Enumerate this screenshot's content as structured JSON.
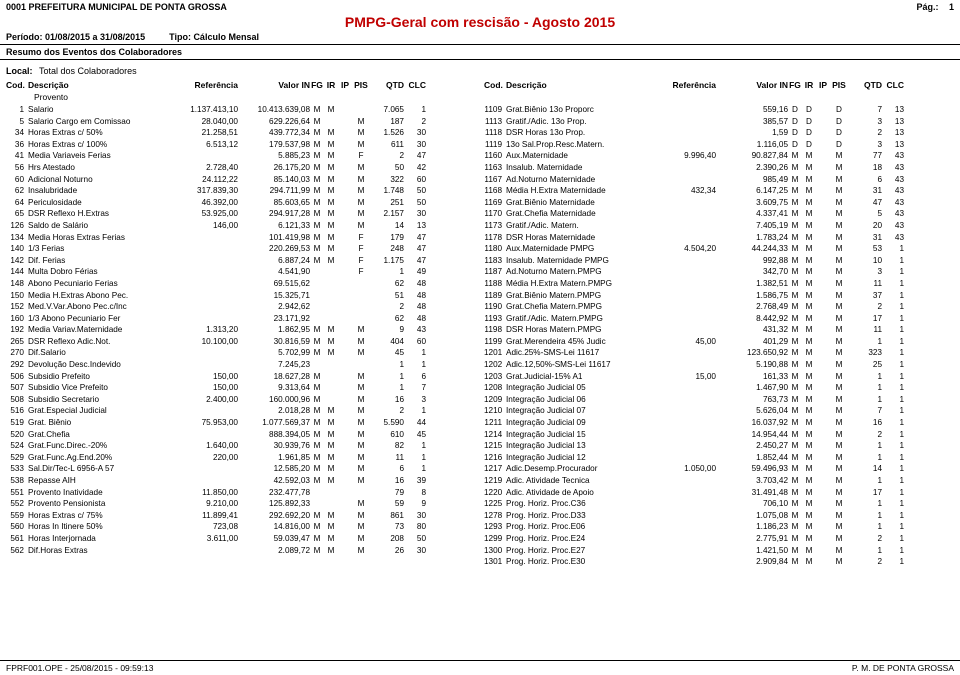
{
  "header": {
    "org": "0001  PREFEITURA MUNICIPAL DE PONTA GROSSA",
    "page_label": "Pág.:",
    "page_num": "1",
    "title": "PMPG-Geral com rescisão - Agosto 2015",
    "periodo_label": "Período: 01/08/2015 a 31/08/2015",
    "tipo_label": "Tipo: Cálculo Mensal",
    "section": "Resumo dos Eventos dos Colaboradores",
    "local_label": "Local:",
    "local_value": "Total dos Colaboradores"
  },
  "thead": {
    "cod": "Cod.",
    "desc": "Descrição",
    "ref": "Referência",
    "val": "Valor IN",
    "fg": "FG",
    "ir": "IR",
    "ip": "IP",
    "pis": "PIS",
    "qtd": "QTD",
    "clc": "CLC",
    "sub": "Provento"
  },
  "left": [
    {
      "cod": "1",
      "desc": "Salario",
      "ref": "1.137.413,10",
      "val": "10.413.639,08",
      "fg": "M",
      "ir": "M",
      "ip": "",
      "pis": "",
      "qtd": "7.065",
      "clc": "1"
    },
    {
      "cod": "5",
      "desc": "Salario Cargo em Comissao",
      "ref": "28.040,00",
      "val": "629.226,64",
      "fg": "M",
      "ir": "",
      "ip": "",
      "pis": "M",
      "qtd": "187",
      "clc": "2"
    },
    {
      "cod": "34",
      "desc": "Horas Extras c/ 50%",
      "ref": "21.258,51",
      "val": "439.772,34",
      "fg": "M",
      "ir": "M",
      "ip": "",
      "pis": "M",
      "qtd": "1.526",
      "clc": "30"
    },
    {
      "cod": "36",
      "desc": "Horas Extras c/ 100%",
      "ref": "6.513,12",
      "val": "179.537,98",
      "fg": "M",
      "ir": "M",
      "ip": "",
      "pis": "M",
      "qtd": "611",
      "clc": "30"
    },
    {
      "cod": "41",
      "desc": "Media Variaveis Ferias",
      "ref": "",
      "val": "5.885,23",
      "fg": "M",
      "ir": "M",
      "ip": "",
      "pis": "F",
      "qtd": "2",
      "clc": "47"
    },
    {
      "cod": "56",
      "desc": "Hrs Atestado",
      "ref": "2.728,40",
      "val": "26.175,20",
      "fg": "M",
      "ir": "M",
      "ip": "",
      "pis": "M",
      "qtd": "50",
      "clc": "42"
    },
    {
      "cod": "60",
      "desc": "Adicional Noturno",
      "ref": "24.112,22",
      "val": "85.140,03",
      "fg": "M",
      "ir": "M",
      "ip": "",
      "pis": "M",
      "qtd": "322",
      "clc": "60"
    },
    {
      "cod": "62",
      "desc": "Insalubridade",
      "ref": "317.839,30",
      "val": "294.711,99",
      "fg": "M",
      "ir": "M",
      "ip": "",
      "pis": "M",
      "qtd": "1.748",
      "clc": "50"
    },
    {
      "cod": "64",
      "desc": "Periculosidade",
      "ref": "46.392,00",
      "val": "85.603,65",
      "fg": "M",
      "ir": "M",
      "ip": "",
      "pis": "M",
      "qtd": "251",
      "clc": "50"
    },
    {
      "cod": "65",
      "desc": "DSR Reflexo H.Extras",
      "ref": "53.925,00",
      "val": "294.917,28",
      "fg": "M",
      "ir": "M",
      "ip": "",
      "pis": "M",
      "qtd": "2.157",
      "clc": "30"
    },
    {
      "cod": "126",
      "desc": "Saldo de Salário",
      "ref": "146,00",
      "val": "6.121,33",
      "fg": "M",
      "ir": "M",
      "ip": "",
      "pis": "M",
      "qtd": "14",
      "clc": "13"
    },
    {
      "cod": "134",
      "desc": "Media Horas Extras Ferias",
      "ref": "",
      "val": "101.419,98",
      "fg": "M",
      "ir": "M",
      "ip": "",
      "pis": "F",
      "qtd": "179",
      "clc": "47"
    },
    {
      "cod": "140",
      "desc": "1/3 Ferias",
      "ref": "",
      "val": "220.269,53",
      "fg": "M",
      "ir": "M",
      "ip": "",
      "pis": "F",
      "qtd": "248",
      "clc": "47"
    },
    {
      "cod": "142",
      "desc": "Dif. Ferias",
      "ref": "",
      "val": "6.887,24",
      "fg": "M",
      "ir": "M",
      "ip": "",
      "pis": "F",
      "qtd": "1.175",
      "clc": "47"
    },
    {
      "cod": "144",
      "desc": "Multa Dobro Férias",
      "ref": "",
      "val": "4.541,90",
      "fg": "",
      "ir": "",
      "ip": "",
      "pis": "F",
      "qtd": "1",
      "clc": "49"
    },
    {
      "cod": "148",
      "desc": "Abono Pecuniario Ferias",
      "ref": "",
      "val": "69.515,62",
      "fg": "",
      "ir": "",
      "ip": "",
      "pis": "",
      "qtd": "62",
      "clc": "48"
    },
    {
      "cod": "150",
      "desc": "Media H.Extras Abono Pec.",
      "ref": "",
      "val": "15.325,71",
      "fg": "",
      "ir": "",
      "ip": "",
      "pis": "",
      "qtd": "51",
      "clc": "48"
    },
    {
      "cod": "152",
      "desc": "Med.V.Var.Abono Pec.c/Inc",
      "ref": "",
      "val": "2.942,62",
      "fg": "",
      "ir": "",
      "ip": "",
      "pis": "",
      "qtd": "2",
      "clc": "48"
    },
    {
      "cod": "160",
      "desc": "1/3 Abono Pecuniario Fer",
      "ref": "",
      "val": "23.171,92",
      "fg": "",
      "ir": "",
      "ip": "",
      "pis": "",
      "qtd": "62",
      "clc": "48"
    },
    {
      "cod": "192",
      "desc": "Media Variav.Maternidade",
      "ref": "1.313,20",
      "val": "1.862,95",
      "fg": "M",
      "ir": "M",
      "ip": "",
      "pis": "M",
      "qtd": "9",
      "clc": "43"
    },
    {
      "cod": "265",
      "desc": "DSR Reflexo Adic.Not.",
      "ref": "10.100,00",
      "val": "30.816,59",
      "fg": "M",
      "ir": "M",
      "ip": "",
      "pis": "M",
      "qtd": "404",
      "clc": "60"
    },
    {
      "cod": "270",
      "desc": "Dif.Salario",
      "ref": "",
      "val": "5.702,99",
      "fg": "M",
      "ir": "M",
      "ip": "",
      "pis": "M",
      "qtd": "45",
      "clc": "1"
    },
    {
      "cod": "292",
      "desc": "Devolução Desc.Indevido",
      "ref": "",
      "val": "7.245,23",
      "fg": "",
      "ir": "",
      "ip": "",
      "pis": "",
      "qtd": "1",
      "clc": "1"
    },
    {
      "cod": "506",
      "desc": "Subsidio Prefeito",
      "ref": "150,00",
      "val": "18.627,28",
      "fg": "M",
      "ir": "",
      "ip": "",
      "pis": "M",
      "qtd": "1",
      "clc": "6"
    },
    {
      "cod": "507",
      "desc": "Subsidio Vice Prefeito",
      "ref": "150,00",
      "val": "9.313,64",
      "fg": "M",
      "ir": "",
      "ip": "",
      "pis": "M",
      "qtd": "1",
      "clc": "7"
    },
    {
      "cod": "508",
      "desc": "Subsidio Secretario",
      "ref": "2.400,00",
      "val": "160.000,96",
      "fg": "M",
      "ir": "",
      "ip": "",
      "pis": "M",
      "qtd": "16",
      "clc": "3"
    },
    {
      "cod": "516",
      "desc": "Grat.Especial Judicial",
      "ref": "",
      "val": "2.018,28",
      "fg": "M",
      "ir": "M",
      "ip": "",
      "pis": "M",
      "qtd": "2",
      "clc": "1"
    },
    {
      "cod": "519",
      "desc": "Grat. Biênio",
      "ref": "75.953,00",
      "val": "1.077.569,37",
      "fg": "M",
      "ir": "M",
      "ip": "",
      "pis": "M",
      "qtd": "5.590",
      "clc": "44"
    },
    {
      "cod": "520",
      "desc": "Grat.Chefia",
      "ref": "",
      "val": "888.394,05",
      "fg": "M",
      "ir": "M",
      "ip": "",
      "pis": "M",
      "qtd": "610",
      "clc": "45"
    },
    {
      "cod": "524",
      "desc": "Grat.Func.Direc.-20%",
      "ref": "1.640,00",
      "val": "30.939,76",
      "fg": "M",
      "ir": "M",
      "ip": "",
      "pis": "M",
      "qtd": "82",
      "clc": "1"
    },
    {
      "cod": "529",
      "desc": "Grat.Func.Ag.End.20%",
      "ref": "220,00",
      "val": "1.961,85",
      "fg": "M",
      "ir": "M",
      "ip": "",
      "pis": "M",
      "qtd": "11",
      "clc": "1"
    },
    {
      "cod": "533",
      "desc": "Sal.Dir/Tec-L 6956-A 57",
      "ref": "",
      "val": "12.585,20",
      "fg": "M",
      "ir": "M",
      "ip": "",
      "pis": "M",
      "qtd": "6",
      "clc": "1"
    },
    {
      "cod": "538",
      "desc": "Repasse AIH",
      "ref": "",
      "val": "42.592,03",
      "fg": "M",
      "ir": "M",
      "ip": "",
      "pis": "M",
      "qtd": "16",
      "clc": "39"
    },
    {
      "cod": "551",
      "desc": "Provento Inatividade",
      "ref": "11.850,00",
      "val": "232.477,78",
      "fg": "",
      "ir": "",
      "ip": "",
      "pis": "",
      "qtd": "79",
      "clc": "8"
    },
    {
      "cod": "552",
      "desc": "Provento Pensionista",
      "ref": "9.210,00",
      "val": "125.892,33",
      "fg": "",
      "ir": "",
      "ip": "",
      "pis": "M",
      "qtd": "59",
      "clc": "9"
    },
    {
      "cod": "559",
      "desc": "Horas Extras c/ 75%",
      "ref": "11.899,41",
      "val": "292.692,20",
      "fg": "M",
      "ir": "M",
      "ip": "",
      "pis": "M",
      "qtd": "861",
      "clc": "30"
    },
    {
      "cod": "560",
      "desc": "Horas In Itinere 50%",
      "ref": "723,08",
      "val": "14.816,00",
      "fg": "M",
      "ir": "M",
      "ip": "",
      "pis": "M",
      "qtd": "73",
      "clc": "80"
    },
    {
      "cod": "561",
      "desc": "Horas Interjornada",
      "ref": "3.611,00",
      "val": "59.039,47",
      "fg": "M",
      "ir": "M",
      "ip": "",
      "pis": "M",
      "qtd": "208",
      "clc": "50"
    },
    {
      "cod": "562",
      "desc": "Dif.Horas Extras",
      "ref": "",
      "val": "2.089,72",
      "fg": "M",
      "ir": "M",
      "ip": "",
      "pis": "M",
      "qtd": "26",
      "clc": "30"
    }
  ],
  "right": [
    {
      "cod": "1109",
      "desc": "Grat.Biênio 13o Proporc",
      "ref": "",
      "val": "559,16",
      "fg": "D",
      "ir": "D",
      "ip": "",
      "pis": "D",
      "qtd": "7",
      "clc": "13"
    },
    {
      "cod": "1113",
      "desc": "Gratif./Adic. 13o Prop.",
      "ref": "",
      "val": "385,57",
      "fg": "D",
      "ir": "D",
      "ip": "",
      "pis": "D",
      "qtd": "3",
      "clc": "13"
    },
    {
      "cod": "1118",
      "desc": "DSR Horas 13o Prop.",
      "ref": "",
      "val": "1,59",
      "fg": "D",
      "ir": "D",
      "ip": "",
      "pis": "D",
      "qtd": "2",
      "clc": "13"
    },
    {
      "cod": "1119",
      "desc": "13o Sal.Prop.Resc.Matern.",
      "ref": "",
      "val": "1.116,05",
      "fg": "D",
      "ir": "D",
      "ip": "",
      "pis": "D",
      "qtd": "3",
      "clc": "13"
    },
    {
      "cod": "1160",
      "desc": "Aux.Maternidade",
      "ref": "9.996,40",
      "val": "90.827,84",
      "fg": "M",
      "ir": "M",
      "ip": "",
      "pis": "M",
      "qtd": "77",
      "clc": "43"
    },
    {
      "cod": "1163",
      "desc": "Insalub. Maternidade",
      "ref": "",
      "val": "2.390,26",
      "fg": "M",
      "ir": "M",
      "ip": "",
      "pis": "M",
      "qtd": "18",
      "clc": "43"
    },
    {
      "cod": "1167",
      "desc": "Ad.Noturno Maternidade",
      "ref": "",
      "val": "985,49",
      "fg": "M",
      "ir": "M",
      "ip": "",
      "pis": "M",
      "qtd": "6",
      "clc": "43"
    },
    {
      "cod": "1168",
      "desc": "Média H.Extra Maternidade",
      "ref": "432,34",
      "val": "6.147,25",
      "fg": "M",
      "ir": "M",
      "ip": "",
      "pis": "M",
      "qtd": "31",
      "clc": "43"
    },
    {
      "cod": "1169",
      "desc": "Grat.Biênio Maternidade",
      "ref": "",
      "val": "3.609,75",
      "fg": "M",
      "ir": "M",
      "ip": "",
      "pis": "M",
      "qtd": "47",
      "clc": "43"
    },
    {
      "cod": "1170",
      "desc": "Grat.Chefia Maternidade",
      "ref": "",
      "val": "4.337,41",
      "fg": "M",
      "ir": "M",
      "ip": "",
      "pis": "M",
      "qtd": "5",
      "clc": "43"
    },
    {
      "cod": "1173",
      "desc": "Gratif./Adic. Matern.",
      "ref": "",
      "val": "7.405,19",
      "fg": "M",
      "ir": "M",
      "ip": "",
      "pis": "M",
      "qtd": "20",
      "clc": "43"
    },
    {
      "cod": "1178",
      "desc": "DSR Horas Maternidade",
      "ref": "",
      "val": "1.783,24",
      "fg": "M",
      "ir": "M",
      "ip": "",
      "pis": "M",
      "qtd": "31",
      "clc": "43"
    },
    {
      "cod": "1180",
      "desc": "Aux.Maternidade PMPG",
      "ref": "4.504,20",
      "val": "44.244,33",
      "fg": "M",
      "ir": "M",
      "ip": "",
      "pis": "M",
      "qtd": "53",
      "clc": "1"
    },
    {
      "cod": "1183",
      "desc": "Insalub. Maternidade PMPG",
      "ref": "",
      "val": "992,88",
      "fg": "M",
      "ir": "M",
      "ip": "",
      "pis": "M",
      "qtd": "10",
      "clc": "1"
    },
    {
      "cod": "1187",
      "desc": "Ad.Noturno Matern.PMPG",
      "ref": "",
      "val": "342,70",
      "fg": "M",
      "ir": "M",
      "ip": "",
      "pis": "M",
      "qtd": "3",
      "clc": "1"
    },
    {
      "cod": "1188",
      "desc": "Média H.Extra Matern.PMPG",
      "ref": "",
      "val": "1.382,51",
      "fg": "M",
      "ir": "M",
      "ip": "",
      "pis": "M",
      "qtd": "11",
      "clc": "1"
    },
    {
      "cod": "1189",
      "desc": "Grat.Biênio Matern.PMPG",
      "ref": "",
      "val": "1.586,75",
      "fg": "M",
      "ir": "M",
      "ip": "",
      "pis": "M",
      "qtd": "37",
      "clc": "1"
    },
    {
      "cod": "1190",
      "desc": "Grat.Chefia Matern.PMPG",
      "ref": "",
      "val": "2.768,49",
      "fg": "M",
      "ir": "M",
      "ip": "",
      "pis": "M",
      "qtd": "2",
      "clc": "1"
    },
    {
      "cod": "1193",
      "desc": "Gratif./Adic. Matern.PMPG",
      "ref": "",
      "val": "8.442,92",
      "fg": "M",
      "ir": "M",
      "ip": "",
      "pis": "M",
      "qtd": "17",
      "clc": "1"
    },
    {
      "cod": "1198",
      "desc": "DSR Horas Matern.PMPG",
      "ref": "",
      "val": "431,32",
      "fg": "M",
      "ir": "M",
      "ip": "",
      "pis": "M",
      "qtd": "11",
      "clc": "1"
    },
    {
      "cod": "1199",
      "desc": "Grat.Merendeira 45% Judic",
      "ref": "45,00",
      "val": "401,29",
      "fg": "M",
      "ir": "M",
      "ip": "",
      "pis": "M",
      "qtd": "1",
      "clc": "1"
    },
    {
      "cod": "1201",
      "desc": "Adic.25%-SMS-Lei 11617",
      "ref": "",
      "val": "123.650,92",
      "fg": "M",
      "ir": "M",
      "ip": "",
      "pis": "M",
      "qtd": "323",
      "clc": "1"
    },
    {
      "cod": "1202",
      "desc": "Adic.12,50%-SMS-Lei 11617",
      "ref": "",
      "val": "5.190,88",
      "fg": "M",
      "ir": "M",
      "ip": "",
      "pis": "M",
      "qtd": "25",
      "clc": "1"
    },
    {
      "cod": "1203",
      "desc": "Grat.Judicial-15% A1",
      "ref": "15,00",
      "val": "161,33",
      "fg": "M",
      "ir": "M",
      "ip": "",
      "pis": "M",
      "qtd": "1",
      "clc": "1"
    },
    {
      "cod": "1208",
      "desc": "Integração Judicial 05",
      "ref": "",
      "val": "1.467,90",
      "fg": "M",
      "ir": "M",
      "ip": "",
      "pis": "M",
      "qtd": "1",
      "clc": "1"
    },
    {
      "cod": "1209",
      "desc": "Integração Judicial 06",
      "ref": "",
      "val": "763,73",
      "fg": "M",
      "ir": "M",
      "ip": "",
      "pis": "M",
      "qtd": "1",
      "clc": "1"
    },
    {
      "cod": "1210",
      "desc": "Integração Judicial 07",
      "ref": "",
      "val": "5.626,04",
      "fg": "M",
      "ir": "M",
      "ip": "",
      "pis": "M",
      "qtd": "7",
      "clc": "1"
    },
    {
      "cod": "1211",
      "desc": "Integração Judicial 09",
      "ref": "",
      "val": "16.037,92",
      "fg": "M",
      "ir": "M",
      "ip": "",
      "pis": "M",
      "qtd": "16",
      "clc": "1"
    },
    {
      "cod": "1214",
      "desc": "Integração Judicial 15",
      "ref": "",
      "val": "14.954,44",
      "fg": "M",
      "ir": "M",
      "ip": "",
      "pis": "M",
      "qtd": "2",
      "clc": "1"
    },
    {
      "cod": "1215",
      "desc": "Integração Judicial 13",
      "ref": "",
      "val": "2.450,27",
      "fg": "M",
      "ir": "M",
      "ip": "",
      "pis": "M",
      "qtd": "1",
      "clc": "1"
    },
    {
      "cod": "1216",
      "desc": "Integração Judicial 12",
      "ref": "",
      "val": "1.852,44",
      "fg": "M",
      "ir": "M",
      "ip": "",
      "pis": "M",
      "qtd": "1",
      "clc": "1"
    },
    {
      "cod": "1217",
      "desc": "Adic.Desemp.Procurador",
      "ref": "1.050,00",
      "val": "59.496,93",
      "fg": "M",
      "ir": "M",
      "ip": "",
      "pis": "M",
      "qtd": "14",
      "clc": "1"
    },
    {
      "cod": "1219",
      "desc": "Adic. Atividade Tecnica",
      "ref": "",
      "val": "3.703,42",
      "fg": "M",
      "ir": "M",
      "ip": "",
      "pis": "M",
      "qtd": "1",
      "clc": "1"
    },
    {
      "cod": "1220",
      "desc": "Adic. Atividade de Apoio",
      "ref": "",
      "val": "31.491,48",
      "fg": "M",
      "ir": "M",
      "ip": "",
      "pis": "M",
      "qtd": "17",
      "clc": "1"
    },
    {
      "cod": "1225",
      "desc": "Prog. Horiz. Proc.C36",
      "ref": "",
      "val": "706,10",
      "fg": "M",
      "ir": "M",
      "ip": "",
      "pis": "M",
      "qtd": "1",
      "clc": "1"
    },
    {
      "cod": "1278",
      "desc": "Prog. Horiz. Proc.D33",
      "ref": "",
      "val": "1.075,08",
      "fg": "M",
      "ir": "M",
      "ip": "",
      "pis": "M",
      "qtd": "1",
      "clc": "1"
    },
    {
      "cod": "1293",
      "desc": "Prog. Horiz. Proc.E06",
      "ref": "",
      "val": "1.186,23",
      "fg": "M",
      "ir": "M",
      "ip": "",
      "pis": "M",
      "qtd": "1",
      "clc": "1"
    },
    {
      "cod": "1299",
      "desc": "Prog. Horiz. Proc.E24",
      "ref": "",
      "val": "2.775,91",
      "fg": "M",
      "ir": "M",
      "ip": "",
      "pis": "M",
      "qtd": "2",
      "clc": "1"
    },
    {
      "cod": "1300",
      "desc": "Prog. Horiz. Proc.E27",
      "ref": "",
      "val": "1.421,50",
      "fg": "M",
      "ir": "M",
      "ip": "",
      "pis": "M",
      "qtd": "1",
      "clc": "1"
    },
    {
      "cod": "1301",
      "desc": "Prog. Horiz. Proc.E30",
      "ref": "",
      "val": "2.909,84",
      "fg": "M",
      "ir": "M",
      "ip": "",
      "pis": "M",
      "qtd": "2",
      "clc": "1"
    }
  ],
  "footer": {
    "left": "FPRF001.OPE  -  25/08/2015  -  09:59:13",
    "right": "P. M. DE PONTA GROSSA"
  }
}
